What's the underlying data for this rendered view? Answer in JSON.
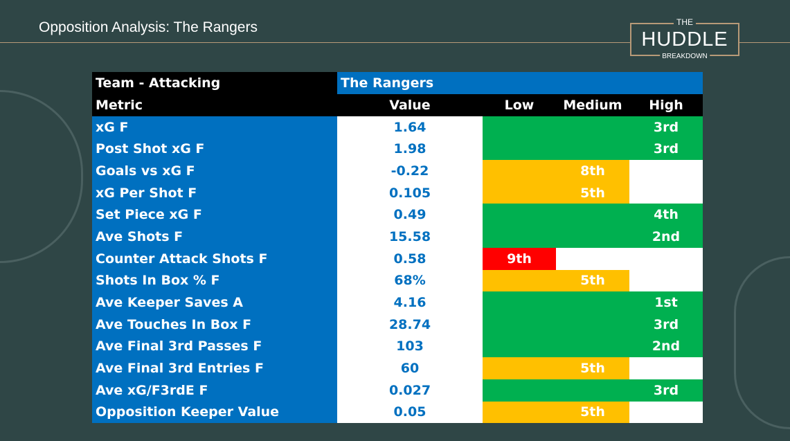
{
  "header": {
    "title": "Opposition Analysis: The Rangers"
  },
  "logo": {
    "top": "THE",
    "main": "HUDDLE",
    "bottom": "BREAKDOWN"
  },
  "table": {
    "title": "Team - Attacking",
    "team": "The Rangers",
    "columns": [
      "Metric",
      "Value",
      "Low",
      "Medium",
      "High"
    ],
    "colors": {
      "high": "#00b050",
      "medium": "#ffc000",
      "low": "#ff0000",
      "header": "#000000",
      "blue": "#0070c0"
    },
    "rows": [
      {
        "metric": "xG F",
        "value": "1.64",
        "level": "high",
        "rank": "3rd"
      },
      {
        "metric": "Post Shot xG F",
        "value": "1.98",
        "level": "high",
        "rank": "3rd"
      },
      {
        "metric": "Goals vs xG F",
        "value": "-0.22",
        "level": "medium",
        "rank": "8th"
      },
      {
        "metric": "xG Per Shot F",
        "value": "0.105",
        "level": "medium",
        "rank": "5th"
      },
      {
        "metric": "Set Piece xG F",
        "value": "0.49",
        "level": "high",
        "rank": "4th"
      },
      {
        "metric": "Ave Shots F",
        "value": "15.58",
        "level": "high",
        "rank": "2nd"
      },
      {
        "metric": "Counter Attack Shots F",
        "value": "0.58",
        "level": "low",
        "rank": "9th"
      },
      {
        "metric": "Shots In Box % F",
        "value": "68%",
        "level": "medium",
        "rank": "5th"
      },
      {
        "metric": "Ave Keeper Saves A",
        "value": "4.16",
        "level": "high",
        "rank": "1st"
      },
      {
        "metric": "Ave Touches In Box F",
        "value": "28.74",
        "level": "high",
        "rank": "3rd"
      },
      {
        "metric": "Ave Final 3rd Passes F",
        "value": "103",
        "level": "high",
        "rank": "2nd"
      },
      {
        "metric": "Ave Final 3rd Entries F",
        "value": "60",
        "level": "medium",
        "rank": "5th"
      },
      {
        "metric": "Ave xG/F3rdE F",
        "value": "0.027",
        "level": "high",
        "rank": "3rd"
      },
      {
        "metric": "Opposition Keeper Value",
        "value": "0.05",
        "level": "medium",
        "rank": "5th"
      }
    ]
  }
}
